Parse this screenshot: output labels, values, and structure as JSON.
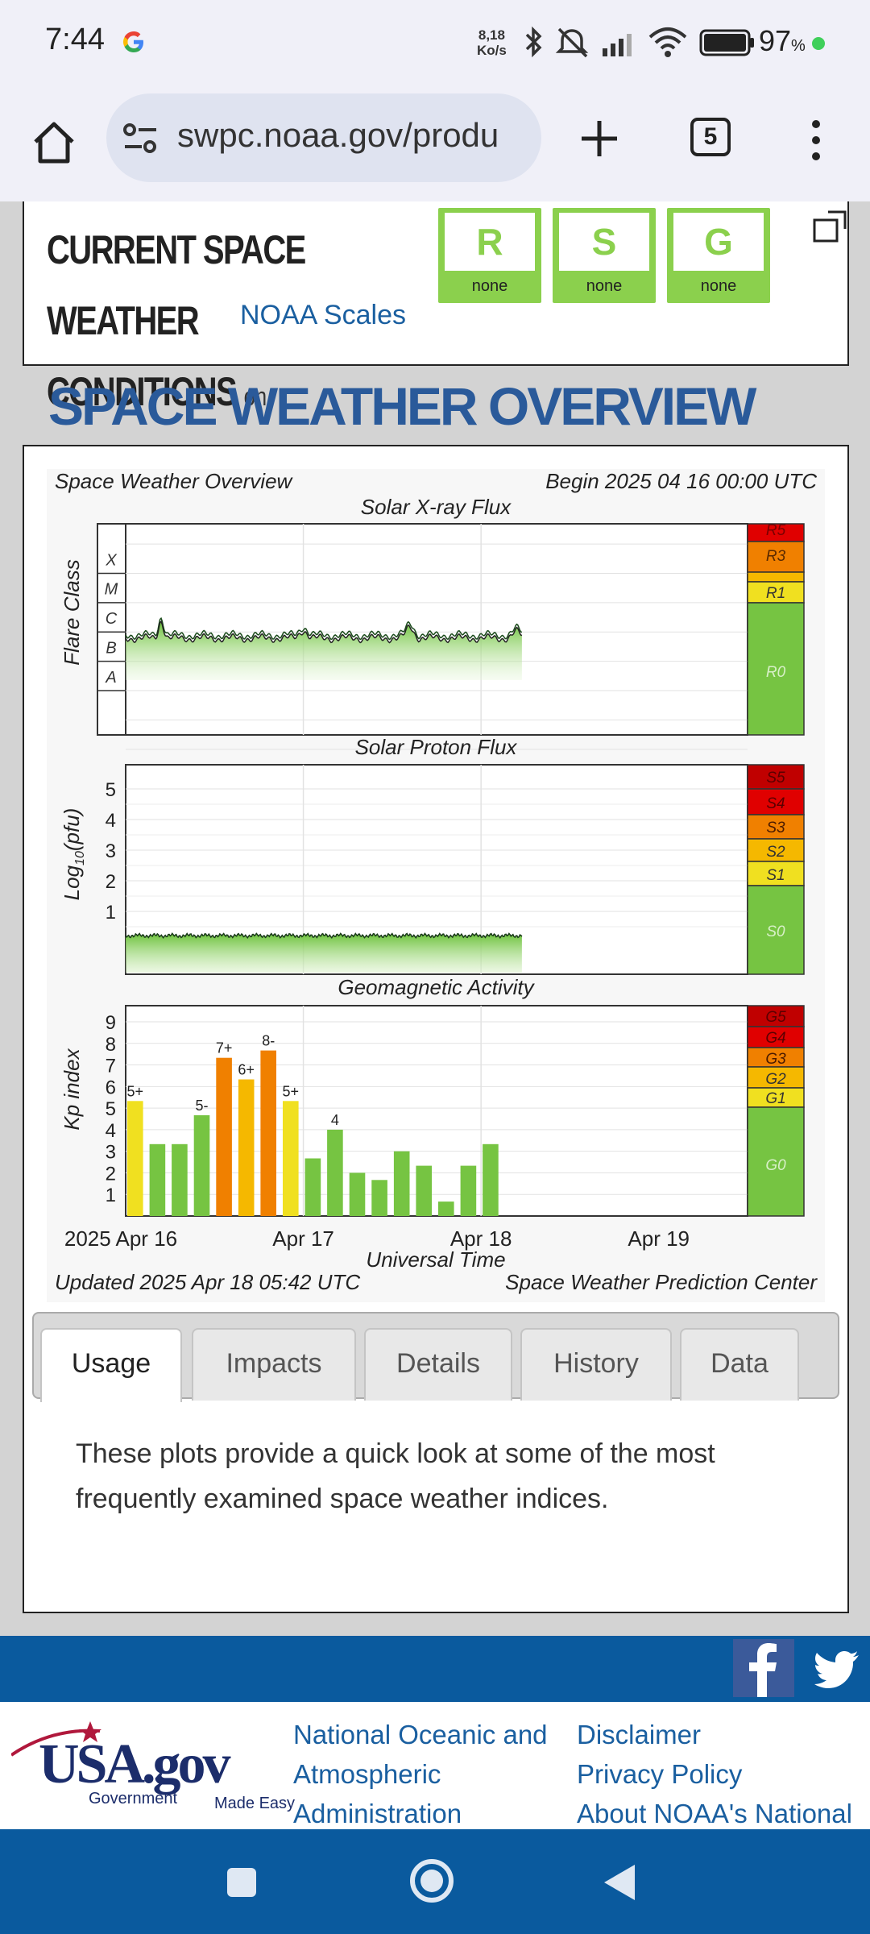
{
  "status": {
    "time": "7:44",
    "net_speed_value": "8,18",
    "net_speed_unit": "Ko/s",
    "battery_pct": "97",
    "battery_unit": "%"
  },
  "browser": {
    "url": "swpc.noaa.gov/produ",
    "tab_count": "5"
  },
  "conditions": {
    "title_line1": "CURRENT SPACE WEATHER",
    "title_line2": "CONDITIONS",
    "on_text": "on",
    "link": "NOAA Scales",
    "scales": [
      {
        "letter": "R",
        "level": "none"
      },
      {
        "letter": "S",
        "level": "none"
      },
      {
        "letter": "G",
        "level": "none"
      }
    ],
    "scale_color": "#8bd04d"
  },
  "overview": {
    "title": "SPACE WEATHER OVERVIEW"
  },
  "chart_data": {
    "type": "bar",
    "header_left": "Space Weather Overview",
    "header_right": "Begin 2025 04 16 00:00 UTC",
    "footer_left": "Updated 2025 Apr 18 05:42 UTC",
    "footer_right": "Space Weather Prediction Center",
    "xlabel": "Universal Time",
    "x_ticks": [
      "2025 Apr 16",
      "Apr 17",
      "Apr 18",
      "Apr 19"
    ],
    "panels": {
      "xray": {
        "title": "Solar X-ray Flux",
        "ylabel": "Flare Class",
        "classes": [
          "X",
          "M",
          "C",
          "B",
          "A"
        ],
        "scale_labels": [
          "R5",
          "R3",
          "R1",
          "R0"
        ]
      },
      "proton": {
        "title": "Solar Proton Flux",
        "ylabel_main": "Log",
        "ylabel_sub": "10",
        "ylabel_unit": "(pfu)",
        "y_ticks": [
          "5",
          "4",
          "3",
          "2",
          "1"
        ],
        "scale_labels": [
          "S5",
          "S4",
          "S3",
          "S2",
          "S1",
          "S0"
        ]
      },
      "geomag": {
        "title": "Geomagnetic Activity",
        "ylabel": "Kp index",
        "y_ticks": [
          "9",
          "8",
          "7",
          "6",
          "5",
          "4",
          "3",
          "2",
          "1"
        ],
        "scale_labels": [
          "G5",
          "G4",
          "G3",
          "G2",
          "G1",
          "G0"
        ],
        "kp_values": [
          5.33,
          3.33,
          3.33,
          4.67,
          7.33,
          6.33,
          7.67,
          5.33,
          2.67,
          4.0,
          2.0,
          1.67,
          3.0,
          2.33,
          0.67,
          2.33,
          3.33
        ],
        "kp_labels": [
          "5+",
          "",
          "",
          "5-",
          "7+",
          "6+",
          "8-",
          "5+",
          "",
          "4",
          "",
          "",
          "",
          "",
          "",
          "",
          ""
        ]
      }
    },
    "colors": {
      "green": "#76c442",
      "yellow": "#f0e020",
      "light_orange": "#f5b800",
      "orange": "#f08000",
      "red": "#e00000",
      "dark_red": "#c00000"
    }
  },
  "tabs": [
    {
      "label": "Usage",
      "active": true
    },
    {
      "label": "Impacts",
      "active": false
    },
    {
      "label": "Details",
      "active": false
    },
    {
      "label": "History",
      "active": false
    },
    {
      "label": "Data",
      "active": false
    }
  ],
  "usage_text": "These plots provide a quick look at some of the most frequently examined space weather indices.",
  "footer": {
    "usa_logo_text": "USA.gov",
    "usa_tagline_a": "Government",
    "usa_tagline_b": "Made Easy",
    "noaa_link_l1": "National Oceanic and",
    "noaa_link_l2": "Atmospheric",
    "noaa_link_l3": "Administration",
    "links": [
      "Disclaimer",
      "Privacy Policy",
      "About NOAA's National"
    ]
  }
}
